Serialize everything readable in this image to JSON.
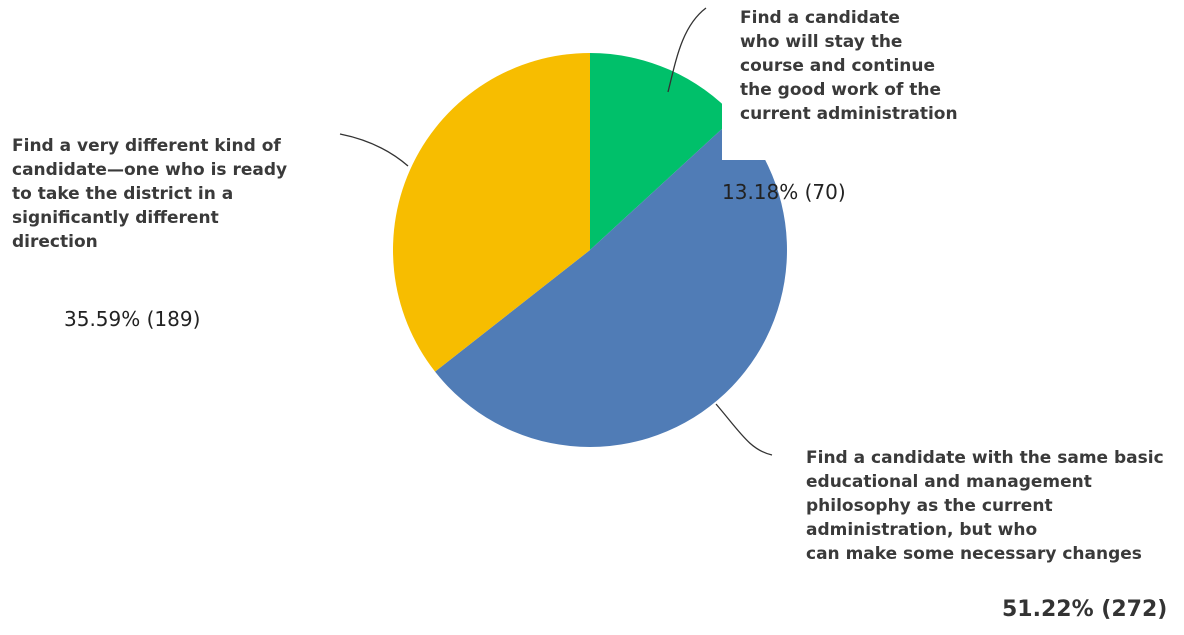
{
  "chart_data": {
    "type": "pie",
    "categories": [
      "Find a candidate\nwho will stay the\ncourse and continue\nthe good work of the\ncurrent administration",
      "Find a candidate with the same basic\neducational and management\nphilosophy as the current\nadministration, but who\ncan make some necessary changes",
      "Find a very different kind of\ncandidate—one who is ready\nto take the district in a\nsignificantly different\ndirection"
    ],
    "values": [
      13.18,
      51.22,
      35.59
    ],
    "counts": [
      70,
      272,
      189
    ],
    "value_labels": [
      "13.18% (70)",
      "51.22% (272)",
      "35.59% (189)"
    ],
    "colors": [
      "#00c06a",
      "#507cb6",
      "#f7bd00"
    ],
    "start_angle_deg": 0,
    "direction": "clockwise"
  }
}
